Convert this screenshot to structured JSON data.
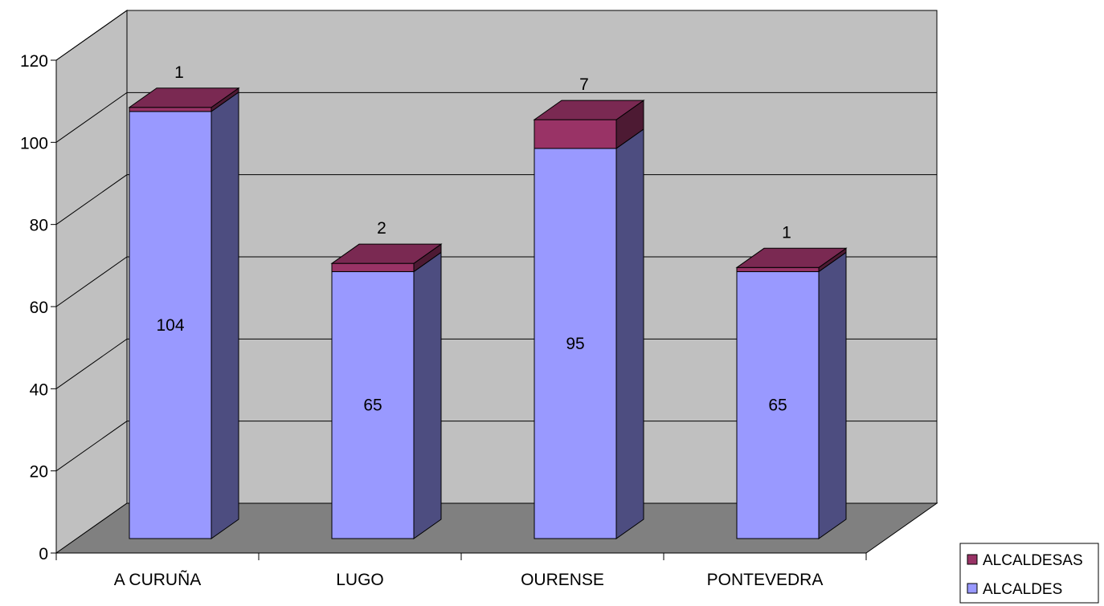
{
  "chart_data": {
    "type": "bar",
    "stacked": true,
    "style": "3d",
    "categories": [
      "A CURUÑA",
      "LUGO",
      "OURENSE",
      "PONTEVEDRA"
    ],
    "series": [
      {
        "name": "ALCALDES",
        "values": [
          104,
          65,
          95,
          65
        ],
        "color": "#9999ff",
        "side_color": "#4d4d80",
        "top_color": "#7b7bcc"
      },
      {
        "name": "ALCALDESAS",
        "values": [
          1,
          2,
          7,
          1
        ],
        "color": "#993366",
        "side_color": "#4d1a33",
        "top_color": "#7a2952"
      }
    ],
    "y_ticks": [
      "0",
      "20",
      "40",
      "60",
      "80",
      "100",
      "120"
    ],
    "ylim": [
      0,
      120
    ],
    "grid": true,
    "wall_color": "#c0c0c0",
    "floor_color": "#808080",
    "legend_position": "bottom-right"
  }
}
